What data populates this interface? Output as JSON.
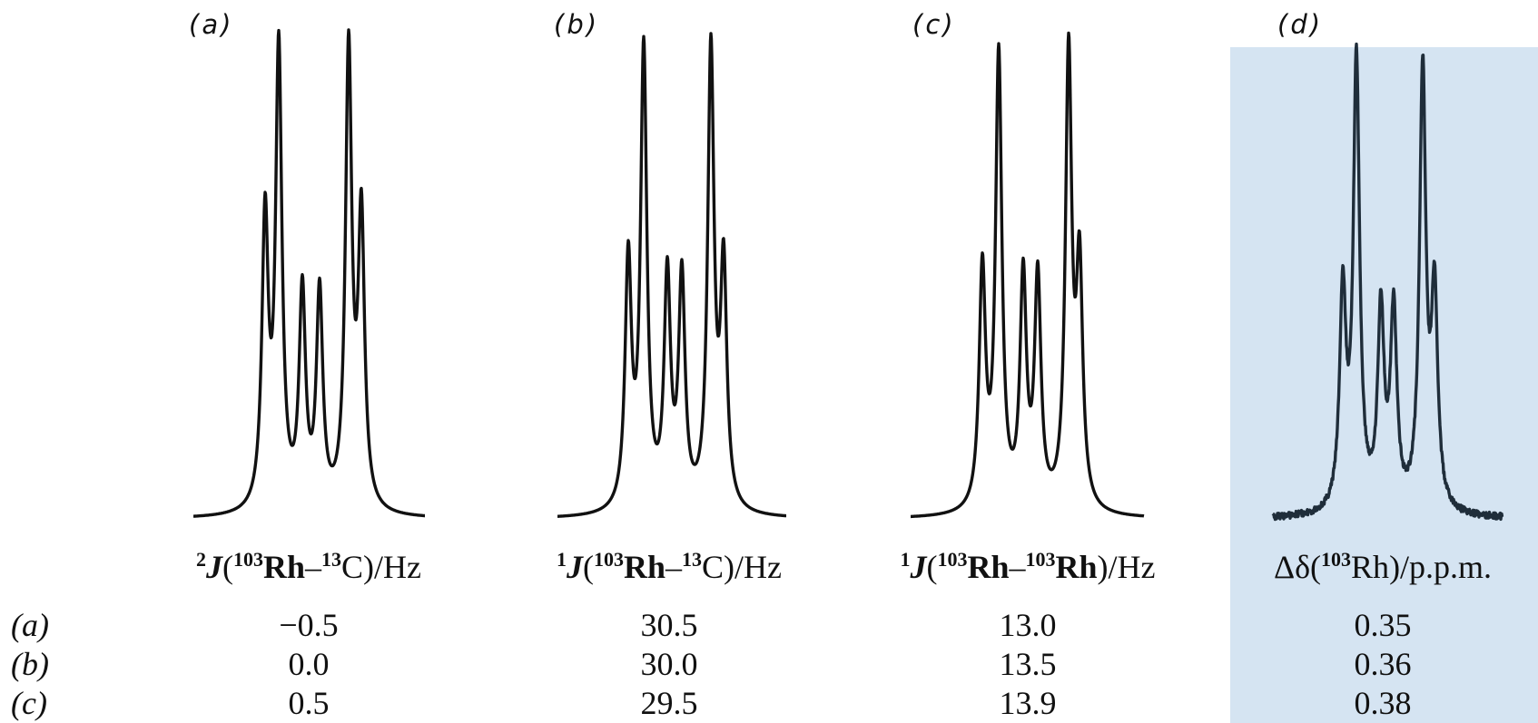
{
  "colors": {
    "trace": "#111111",
    "trace_d": "#1f2d3a",
    "highlight": "#d5e4f2"
  },
  "panels": [
    {
      "label": "(a)"
    },
    {
      "label": "(b)"
    },
    {
      "label": "(c)"
    },
    {
      "label": "(d)"
    }
  ],
  "table": {
    "headers": [
      {
        "pre": "2",
        "J": "J",
        "open": "(",
        "iso1": "103",
        "el1": "Rh",
        "dash": "–",
        "iso2": "13",
        "el2": "C",
        "tail": ")/Hz"
      },
      {
        "pre": "1",
        "J": "J",
        "open": "(",
        "iso1": "103",
        "el1": "Rh",
        "dash": "–",
        "iso2": "13",
        "el2": "C",
        "tail": ")/Hz"
      },
      {
        "pre": "1",
        "J": "J",
        "open": "(",
        "iso1": "103",
        "el1": "Rh",
        "dash": "–",
        "iso2": "103",
        "el2": "Rh",
        "tail": ")/Hz"
      },
      {
        "pre": "Δδ(",
        "iso1": "103",
        "el1": "Rh",
        "tail": ")/p.p.m."
      }
    ],
    "rows": [
      {
        "label": "(a)",
        "values": [
          "−0.5",
          "30.5",
          "13.0",
          "0.35"
        ]
      },
      {
        "label": "(b)",
        "values": [
          "0.0",
          "30.0",
          "13.5",
          "0.36"
        ]
      },
      {
        "label": "(c)",
        "values": [
          "0.5",
          "29.5",
          "13.9",
          "0.38"
        ]
      }
    ]
  }
}
